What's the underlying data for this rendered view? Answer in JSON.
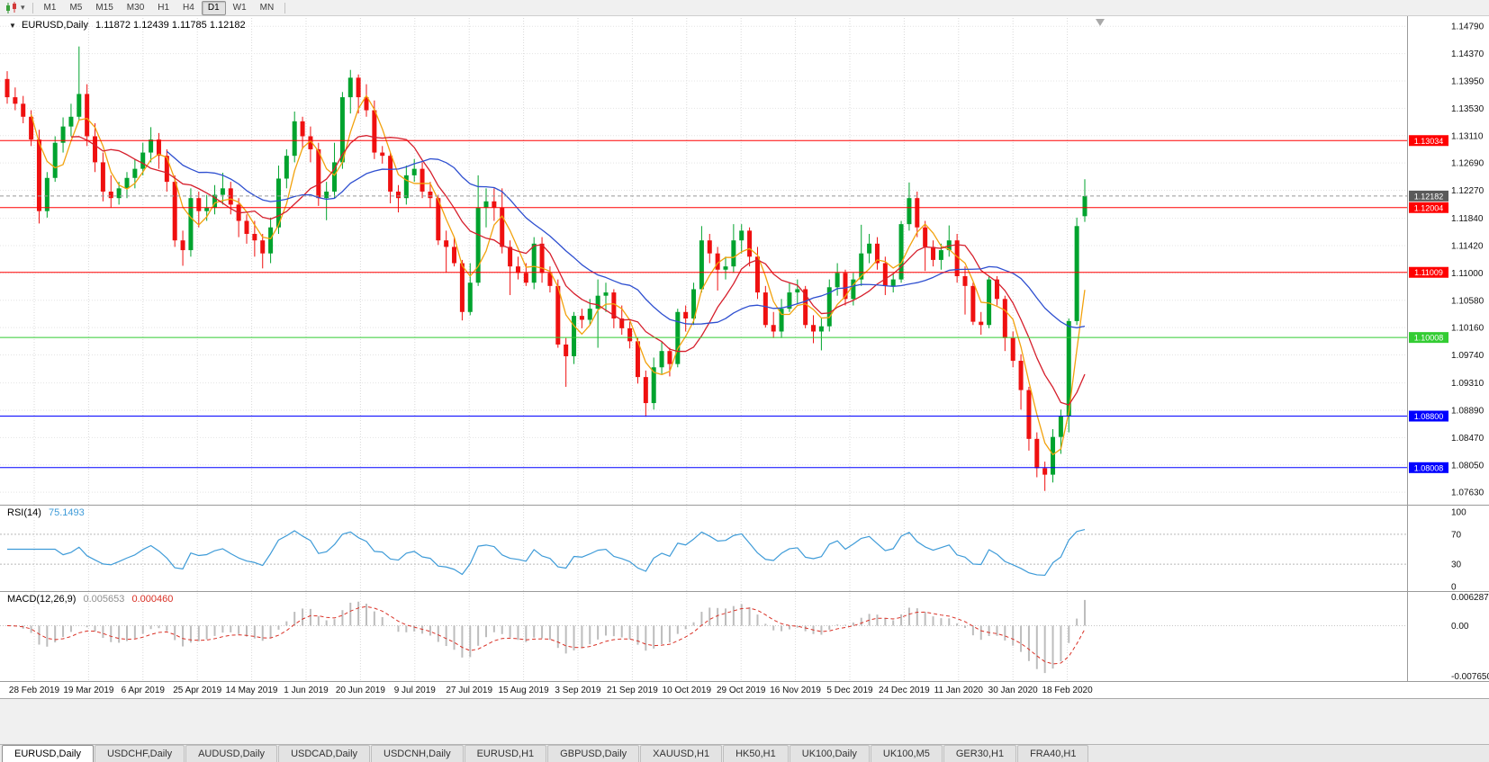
{
  "toolbar": {
    "timeframes": [
      "M1",
      "M5",
      "M15",
      "M30",
      "H1",
      "H4",
      "D1",
      "W1",
      "MN"
    ],
    "active_timeframe": "D1"
  },
  "chart_header": {
    "symbol": "EURUSD,Daily",
    "ohlc_text": "1.11872 1.12439 1.11785 1.12182"
  },
  "rsi_panel": {
    "label": "RSI(14)",
    "value": "75.1493",
    "scale_labels": [
      "100",
      "70",
      "30",
      "0"
    ],
    "line_color": "#3E9BD8"
  },
  "macd_panel": {
    "label": "MACD(12,26,9)",
    "main_value": "0.005653",
    "signal_value": "0.000460",
    "scale_top": "0.006287",
    "scale_zero": "0.00",
    "scale_bottom": "-0.007650",
    "histogram_color": "#bdbdbd",
    "signal_color": "#d93025"
  },
  "tabs": [
    {
      "label": "EURUSD,Daily",
      "active": true
    },
    {
      "label": "USDCHF,Daily",
      "active": false
    },
    {
      "label": "AUDUSD,Daily",
      "active": false
    },
    {
      "label": "USDCAD,Daily",
      "active": false
    },
    {
      "label": "USDCNH,Daily",
      "active": false
    },
    {
      "label": "EURUSD,H1",
      "active": false
    },
    {
      "label": "GBPUSD,Daily",
      "active": false
    },
    {
      "label": "XAUUSD,H1",
      "active": false
    },
    {
      "label": "HK50,H1",
      "active": false
    },
    {
      "label": "UK100,Daily",
      "active": false
    },
    {
      "label": "UK100,M5",
      "active": false
    },
    {
      "label": "GER30,H1",
      "active": false
    },
    {
      "label": "FRA40,H1",
      "active": false
    }
  ],
  "chart_data": {
    "type": "candlestick",
    "symbol": "EURUSD",
    "timeframe": "Daily",
    "colors": {
      "bull": "#00A32E",
      "bear": "#EF1010",
      "grid": "#dcdcdc"
    },
    "y_range": [
      1.0748,
      1.1489
    ],
    "y_tick_labels": [
      "1.14790",
      "1.14370",
      "1.13950",
      "1.13530",
      "1.13110",
      "1.12690",
      "1.12270",
      "1.11840",
      "1.11420",
      "1.11000",
      "1.10580",
      "1.10160",
      "1.09740",
      "1.09310",
      "1.08890",
      "1.08470",
      "1.08050",
      "1.07630"
    ],
    "x_tick_labels": [
      "28 Feb 2019",
      "19 Mar 2019",
      "6 Apr 2019",
      "25 Apr 2019",
      "14 May 2019",
      "1 Jun 2019",
      "20 Jun 2019",
      "9 Jul 2019",
      "27 Jul 2019",
      "15 Aug 2019",
      "3 Sep 2019",
      "21 Sep 2019",
      "10 Oct 2019",
      "29 Oct 2019",
      "16 Nov 2019",
      "5 Dec 2019",
      "24 Dec 2019",
      "11 Jan 2020",
      "30 Jan 2020",
      "18 Feb 2020"
    ],
    "hlines": [
      {
        "price": 1.13034,
        "label": "1.13034",
        "color": "#FF0000"
      },
      {
        "price": 1.12004,
        "label": "1.12004",
        "color": "#FF0000"
      },
      {
        "price": 1.11009,
        "label": "1.11009",
        "color": "#FF0000"
      },
      {
        "price": 1.10008,
        "label": "1.10008",
        "color": "#33CC33"
      },
      {
        "price": 1.088,
        "label": "1.08800",
        "color": "#0000FF"
      },
      {
        "price": 1.08008,
        "label": "1.08008",
        "color": "#0000FF"
      }
    ],
    "current_price": {
      "value": 1.12182,
      "label": "1.12182",
      "box_color": "#5a5a5a"
    },
    "overlays": [
      {
        "name": "fast-ma",
        "type": "sma",
        "period_bars": 4,
        "color": "#F2A20D"
      },
      {
        "name": "mid-ma",
        "type": "sma",
        "period_bars": 9,
        "color": "#D61F2C"
      },
      {
        "name": "slow-ma",
        "type": "sma",
        "period_bars": 21,
        "color": "#2E4FD0"
      }
    ],
    "indicators": [
      {
        "name": "RSI",
        "display": "RSI(14)",
        "period_bars": 7,
        "current": 75.1493,
        "range": [
          0,
          100
        ],
        "levels": [
          70,
          30
        ]
      },
      {
        "name": "MACD",
        "display": "MACD(12,26,9)",
        "fast_bars": 6,
        "slow_bars": 13,
        "signal_bars": 5,
        "current_main": 0.005653,
        "current_signal": 0.00046
      }
    ],
    "candles": [
      [
        1.1398,
        1.141,
        1.136,
        1.137
      ],
      [
        1.137,
        1.1385,
        1.135,
        1.136
      ],
      [
        1.136,
        1.1372,
        1.133,
        1.134
      ],
      [
        1.134,
        1.135,
        1.1295,
        1.1305
      ],
      [
        1.1305,
        1.132,
        1.1176,
        1.1195
      ],
      [
        1.1195,
        1.1255,
        1.1185,
        1.1246
      ],
      [
        1.1246,
        1.131,
        1.124,
        1.13
      ],
      [
        1.13,
        1.1339,
        1.1285,
        1.1325
      ],
      [
        1.1325,
        1.136,
        1.131,
        1.134
      ],
      [
        1.134,
        1.1448,
        1.1335,
        1.1375
      ],
      [
        1.1375,
        1.139,
        1.1295,
        1.131
      ],
      [
        1.131,
        1.133,
        1.1255,
        1.127
      ],
      [
        1.127,
        1.1285,
        1.121,
        1.1225
      ],
      [
        1.1225,
        1.125,
        1.12,
        1.1215
      ],
      [
        1.1215,
        1.124,
        1.1205,
        1.123
      ],
      [
        1.123,
        1.1255,
        1.1215,
        1.1246
      ],
      [
        1.1246,
        1.1275,
        1.123,
        1.126
      ],
      [
        1.126,
        1.13,
        1.125,
        1.1285
      ],
      [
        1.1285,
        1.1324,
        1.127,
        1.1305
      ],
      [
        1.1305,
        1.1315,
        1.126,
        1.128
      ],
      [
        1.128,
        1.129,
        1.1225,
        1.124
      ],
      [
        1.124,
        1.125,
        1.114,
        1.115
      ],
      [
        1.115,
        1.1165,
        1.1111,
        1.1135
      ],
      [
        1.1135,
        1.123,
        1.1125,
        1.1215
      ],
      [
        1.1215,
        1.1225,
        1.117,
        1.1195
      ],
      [
        1.1195,
        1.122,
        1.118,
        1.12
      ],
      [
        1.12,
        1.1235,
        1.119,
        1.122
      ],
      [
        1.122,
        1.1254,
        1.1205,
        1.123
      ],
      [
        1.123,
        1.124,
        1.119,
        1.1205
      ],
      [
        1.1205,
        1.1215,
        1.1155,
        1.118
      ],
      [
        1.118,
        1.119,
        1.1145,
        1.116
      ],
      [
        1.116,
        1.118,
        1.1125,
        1.115
      ],
      [
        1.115,
        1.116,
        1.1107,
        1.113
      ],
      [
        1.113,
        1.1185,
        1.1115,
        1.117
      ],
      [
        1.117,
        1.1265,
        1.116,
        1.1245
      ],
      [
        1.1245,
        1.129,
        1.123,
        1.128
      ],
      [
        1.128,
        1.1348,
        1.127,
        1.1333
      ],
      [
        1.1333,
        1.134,
        1.129,
        1.131
      ],
      [
        1.131,
        1.1325,
        1.127,
        1.129
      ],
      [
        1.129,
        1.13,
        1.1203,
        1.1215
      ],
      [
        1.1215,
        1.124,
        1.1181,
        1.1225
      ],
      [
        1.1225,
        1.13,
        1.1215,
        1.127
      ],
      [
        1.127,
        1.1378,
        1.126,
        1.137
      ],
      [
        1.137,
        1.1412,
        1.1345,
        1.14
      ],
      [
        1.14,
        1.1405,
        1.1345,
        1.137
      ],
      [
        1.137,
        1.139,
        1.134,
        1.135
      ],
      [
        1.135,
        1.1365,
        1.1275,
        1.1285
      ],
      [
        1.1285,
        1.1295,
        1.1268,
        1.128
      ],
      [
        1.128,
        1.1285,
        1.1207,
        1.1225
      ],
      [
        1.1225,
        1.1235,
        1.1193,
        1.1215
      ],
      [
        1.1215,
        1.1265,
        1.1205,
        1.125
      ],
      [
        1.125,
        1.1275,
        1.124,
        1.126
      ],
      [
        1.126,
        1.127,
        1.1215,
        1.1225
      ],
      [
        1.1225,
        1.124,
        1.12,
        1.1215
      ],
      [
        1.1215,
        1.122,
        1.1143,
        1.115
      ],
      [
        1.115,
        1.1165,
        1.1101,
        1.114
      ],
      [
        1.114,
        1.1155,
        1.111,
        1.1115
      ],
      [
        1.1115,
        1.112,
        1.1027,
        1.104
      ],
      [
        1.104,
        1.1115,
        1.1035,
        1.1085
      ],
      [
        1.1085,
        1.125,
        1.108,
        1.12
      ],
      [
        1.12,
        1.123,
        1.117,
        1.121
      ],
      [
        1.121,
        1.123,
        1.118,
        1.12
      ],
      [
        1.12,
        1.123,
        1.113,
        1.114
      ],
      [
        1.114,
        1.115,
        1.1066,
        1.111
      ],
      [
        1.111,
        1.1125,
        1.109,
        1.11
      ],
      [
        1.11,
        1.1115,
        1.108,
        1.1085
      ],
      [
        1.1085,
        1.1155,
        1.1075,
        1.1145
      ],
      [
        1.1145,
        1.1155,
        1.1085,
        1.11
      ],
      [
        1.11,
        1.111,
        1.107,
        1.108
      ],
      [
        1.108,
        1.109,
        1.0985,
        1.099
      ],
      [
        1.099,
        1.1,
        1.0925,
        1.0972
      ],
      [
        1.0972,
        1.104,
        1.096,
        1.1034
      ],
      [
        1.1034,
        1.1045,
        1.1015,
        1.1028
      ],
      [
        1.1028,
        1.106,
        1.102,
        1.1045
      ],
      [
        1.1045,
        1.109,
        1.0985,
        1.1065
      ],
      [
        1.1065,
        1.1085,
        1.104,
        1.107
      ],
      [
        1.107,
        1.1075,
        1.1015,
        1.103
      ],
      [
        1.103,
        1.105,
        1.1005,
        1.1015
      ],
      [
        1.1015,
        1.1025,
        1.0984,
        1.0995
      ],
      [
        1.0995,
        1.1,
        1.093,
        1.094
      ],
      [
        1.094,
        1.095,
        1.0879,
        1.09
      ],
      [
        1.09,
        1.097,
        1.089,
        1.0955
      ],
      [
        1.0955,
        1.0995,
        1.0945,
        1.098
      ],
      [
        1.098,
        1.0985,
        1.0941,
        1.096
      ],
      [
        1.096,
        1.1045,
        1.0955,
        1.104
      ],
      [
        1.104,
        1.105,
        1.101,
        1.103
      ],
      [
        1.103,
        1.1085,
        1.102,
        1.1075
      ],
      [
        1.1075,
        1.1172,
        1.107,
        1.115
      ],
      [
        1.115,
        1.116,
        1.1115,
        1.113
      ],
      [
        1.113,
        1.114,
        1.1073,
        1.1105
      ],
      [
        1.1105,
        1.1125,
        1.109,
        1.111
      ],
      [
        1.111,
        1.1175,
        1.11,
        1.115
      ],
      [
        1.115,
        1.1175,
        1.113,
        1.1165
      ],
      [
        1.1165,
        1.117,
        1.111,
        1.1125
      ],
      [
        1.1125,
        1.114,
        1.106,
        1.107
      ],
      [
        1.107,
        1.108,
        1.1016,
        1.102
      ],
      [
        1.102,
        1.104,
        1.1,
        1.101
      ],
      [
        1.101,
        1.106,
        1.1,
        1.1045
      ],
      [
        1.1045,
        1.1085,
        1.104,
        1.107
      ],
      [
        1.107,
        1.109,
        1.1052,
        1.1075
      ],
      [
        1.1075,
        1.108,
        1.1015,
        1.102
      ],
      [
        1.102,
        1.1035,
        1.0992,
        1.101
      ],
      [
        1.101,
        1.103,
        1.0981,
        1.1018
      ],
      [
        1.1018,
        1.109,
        1.101,
        1.1078
      ],
      [
        1.1078,
        1.1115,
        1.1065,
        1.11
      ],
      [
        1.11,
        1.1105,
        1.105,
        1.106
      ],
      [
        1.106,
        1.11,
        1.105,
        1.109
      ],
      [
        1.109,
        1.1174,
        1.108,
        1.113
      ],
      [
        1.113,
        1.116,
        1.1115,
        1.1145
      ],
      [
        1.1145,
        1.1155,
        1.1105,
        1.1115
      ],
      [
        1.1115,
        1.1125,
        1.1066,
        1.108
      ],
      [
        1.108,
        1.11,
        1.107,
        1.109
      ],
      [
        1.109,
        1.118,
        1.1085,
        1.1175
      ],
      [
        1.1175,
        1.1239,
        1.1165,
        1.1215
      ],
      [
        1.1215,
        1.1225,
        1.1155,
        1.117
      ],
      [
        1.117,
        1.118,
        1.1103,
        1.114
      ],
      [
        1.114,
        1.115,
        1.111,
        1.112
      ],
      [
        1.112,
        1.1145,
        1.1105,
        1.1135
      ],
      [
        1.1135,
        1.1173,
        1.1125,
        1.115
      ],
      [
        1.115,
        1.116,
        1.1085,
        1.1095
      ],
      [
        1.1095,
        1.111,
        1.1036,
        1.108
      ],
      [
        1.108,
        1.1085,
        1.102,
        1.1025
      ],
      [
        1.1025,
        1.104,
        1.1005,
        1.102
      ],
      [
        1.102,
        1.1095,
        1.1015,
        1.109
      ],
      [
        1.109,
        1.1095,
        1.105,
        1.106
      ],
      [
        1.106,
        1.1065,
        1.098,
        1.1
      ],
      [
        1.1,
        1.101,
        1.0955,
        1.0965
      ],
      [
        1.0965,
        1.0975,
        1.089,
        1.092
      ],
      [
        1.092,
        1.0925,
        1.0827,
        1.0845
      ],
      [
        1.0845,
        1.0855,
        1.0786,
        1.08
      ],
      [
        1.08,
        1.081,
        1.0765,
        1.079
      ],
      [
        1.079,
        1.086,
        1.0778,
        1.0848
      ],
      [
        1.0848,
        1.089,
        1.0822,
        1.088
      ],
      [
        1.088,
        1.103,
        1.0855,
        1.1026
      ],
      [
        1.1026,
        1.1185,
        1.102,
        1.1172
      ],
      [
        1.11872,
        1.12439,
        1.11785,
        1.12182
      ]
    ]
  }
}
